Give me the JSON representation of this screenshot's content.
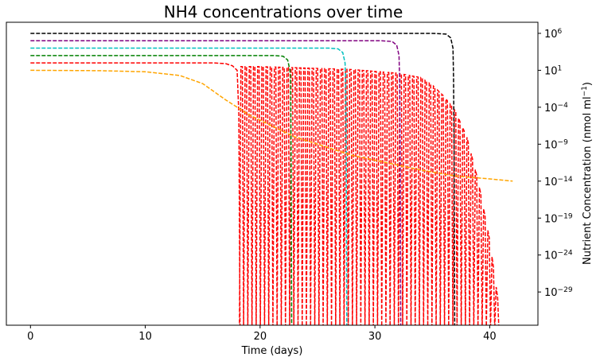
{
  "chart_data": {
    "type": "line",
    "title": "NH4 concentrations over time",
    "xlabel": "Time (days)",
    "ylabel": "Nutrient Concentration (nmol ml",
    "ylabel_sup": "−1",
    "ylabel_suffix": ")",
    "xlim": [
      -2.1,
      44.2
    ],
    "ylim_log10": [
      -33.5,
      7.5
    ],
    "y_scale": "log",
    "y_axis_side": "right",
    "grid": false,
    "x_ticks": [
      {
        "value": 0,
        "label": "0"
      },
      {
        "value": 10,
        "label": "10"
      },
      {
        "value": 20,
        "label": "20"
      },
      {
        "value": 30,
        "label": "30"
      },
      {
        "value": 40,
        "label": "40"
      }
    ],
    "y_ticks": [
      {
        "exp": 6,
        "label": "10",
        "sup": "6"
      },
      {
        "exp": 1,
        "label": "10",
        "sup": "1"
      },
      {
        "exp": -4,
        "label": "10",
        "sup": "−4"
      },
      {
        "exp": -9,
        "label": "10",
        "sup": "−9"
      },
      {
        "exp": -14,
        "label": "10",
        "sup": "−14"
      },
      {
        "exp": -19,
        "label": "10",
        "sup": "−19"
      },
      {
        "exp": -24,
        "label": "10",
        "sup": "−24"
      },
      {
        "exp": -29,
        "label": "10",
        "sup": "−29"
      }
    ],
    "series": [
      {
        "color": "#000000",
        "style": "dashed",
        "points": [
          [
            0,
            6.0
          ],
          [
            35.0,
            6.0
          ],
          [
            36.2,
            5.9
          ],
          [
            36.6,
            5.4
          ],
          [
            36.8,
            4.0
          ],
          [
            36.85,
            0
          ],
          [
            36.9,
            -10
          ],
          [
            36.95,
            -34
          ]
        ]
      },
      {
        "color": "#800080",
        "style": "dashed",
        "points": [
          [
            0,
            5.0
          ],
          [
            30.5,
            5.0
          ],
          [
            31.5,
            4.9
          ],
          [
            31.9,
            4.4
          ],
          [
            32.1,
            3.0
          ],
          [
            32.15,
            0
          ],
          [
            32.2,
            -10
          ],
          [
            32.25,
            -34
          ]
        ]
      },
      {
        "color": "#00BFBF",
        "style": "dashed",
        "points": [
          [
            0,
            4.0
          ],
          [
            26.0,
            4.0
          ],
          [
            26.8,
            3.9
          ],
          [
            27.2,
            3.4
          ],
          [
            27.4,
            2.0
          ],
          [
            27.45,
            0
          ],
          [
            27.5,
            -10
          ],
          [
            27.55,
            -34
          ]
        ]
      },
      {
        "color": "#008000",
        "style": "dashed",
        "points": [
          [
            0,
            3.0
          ],
          [
            21.2,
            3.0
          ],
          [
            22.0,
            2.9
          ],
          [
            22.4,
            2.4
          ],
          [
            22.6,
            1.0
          ],
          [
            22.65,
            0
          ],
          [
            22.7,
            -10
          ],
          [
            22.75,
            -34
          ]
        ]
      },
      {
        "color": "#FF0000",
        "style": "dashed",
        "points": [
          [
            0,
            2.0
          ],
          [
            16.0,
            2.0
          ],
          [
            17.0,
            1.9
          ],
          [
            17.6,
            1.6
          ],
          [
            18.0,
            1.0
          ],
          [
            18.15,
            -5
          ],
          [
            18.25,
            -34
          ]
        ]
      },
      {
        "color": "#FFA500",
        "style": "dashed",
        "points": [
          [
            0,
            1.0
          ],
          [
            6,
            0.95
          ],
          [
            10,
            0.8
          ],
          [
            13,
            0.3
          ],
          [
            15,
            -0.8
          ],
          [
            17,
            -3.0
          ],
          [
            19,
            -5.0
          ],
          [
            21,
            -6.5
          ],
          [
            23,
            -8.0
          ],
          [
            25,
            -9.0
          ],
          [
            28,
            -10.5
          ],
          [
            31,
            -11.5
          ],
          [
            34,
            -12.5
          ],
          [
            37,
            -13.3
          ],
          [
            40,
            -13.7
          ],
          [
            42,
            -14.0
          ]
        ]
      }
    ],
    "oscillation": {
      "color": "#FF0000",
      "style": "dashed",
      "x_start": 18.2,
      "x_end": 40.8,
      "spikes": 62,
      "spike_bottom_log10": -34,
      "envelope_top": [
        [
          18.2,
          1.5
        ],
        [
          20,
          1.5
        ],
        [
          24,
          1.3
        ],
        [
          28,
          1.1
        ],
        [
          32,
          0.6
        ],
        [
          34,
          0.0
        ],
        [
          35,
          -1.0
        ],
        [
          36,
          -2.5
        ],
        [
          37,
          -4.5
        ],
        [
          38,
          -8.0
        ],
        [
          39,
          -14.0
        ],
        [
          40,
          -22.0
        ],
        [
          40.8,
          -31.0
        ]
      ]
    }
  }
}
